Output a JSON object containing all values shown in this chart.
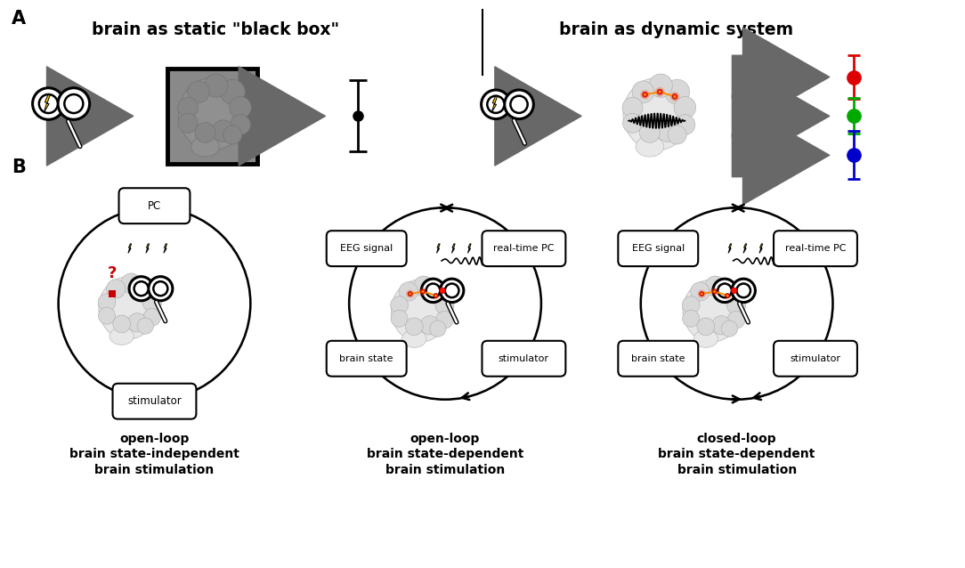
{
  "bg_color": "#ffffff",
  "title_A_left": "brain as static \"black box\"",
  "title_A_right": "brain as dynamic system",
  "label_A": "A",
  "label_B": "B",
  "box_label1": "open-loop\nbrain state-independent\nbrain stimulation",
  "box_label2": "open-loop\nbrain state-dependent\nbrain stimulation",
  "box_label3": "closed-loop\nbrain state-dependent\nbrain stimulation",
  "red_color": "#dd0000",
  "green_color": "#00aa00",
  "blue_color": "#0000cc",
  "gray_arrow": "#686868",
  "black": "#000000",
  "brain_light": "#e8e8e8",
  "brain_gyri": "#d0d0d0",
  "brain_dark_bg": "#888888"
}
